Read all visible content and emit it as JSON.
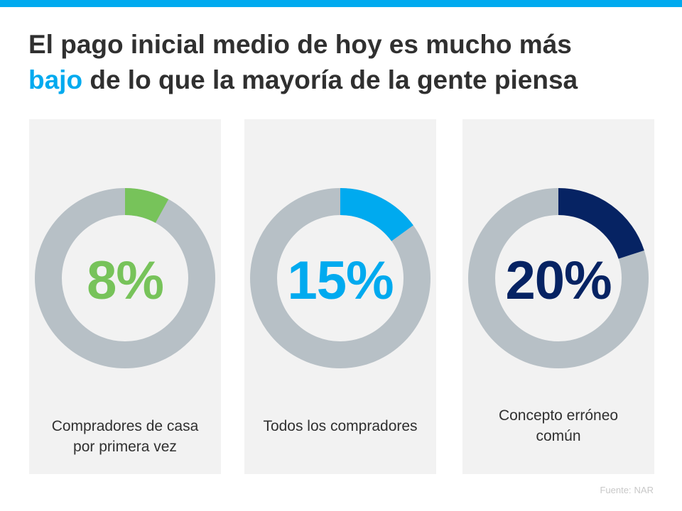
{
  "header": {
    "title_line1": "El pago inicial medio de hoy es mucho más",
    "title_accent": "bajo",
    "title_rest": "de lo que la mayoría de la gente piensa"
  },
  "colors": {
    "accent": "#00aaef",
    "track": "#b7c0c6",
    "panel": "#f2f2f2"
  },
  "chart_data": [
    {
      "type": "pie",
      "variant": "donut",
      "value": 8,
      "display": "8%",
      "label": "Compradores de casa por primera vez",
      "label_lines": [
        "Compradores de casa",
        "por primera vez"
      ],
      "color": "#77c35a"
    },
    {
      "type": "pie",
      "variant": "donut",
      "value": 15,
      "display": "15%",
      "label": "Todos los compradores",
      "label_lines": [
        "Todos los compradores"
      ],
      "color": "#00aaef"
    },
    {
      "type": "pie",
      "variant": "donut",
      "value": 20,
      "display": "20%",
      "label": "Concepto erróneo común",
      "label_lines": [
        "Concepto erróneo",
        "común"
      ],
      "color": "#062363"
    }
  ],
  "footer": {
    "source_prefix": "Fuente:",
    "source_name": "NAR"
  }
}
